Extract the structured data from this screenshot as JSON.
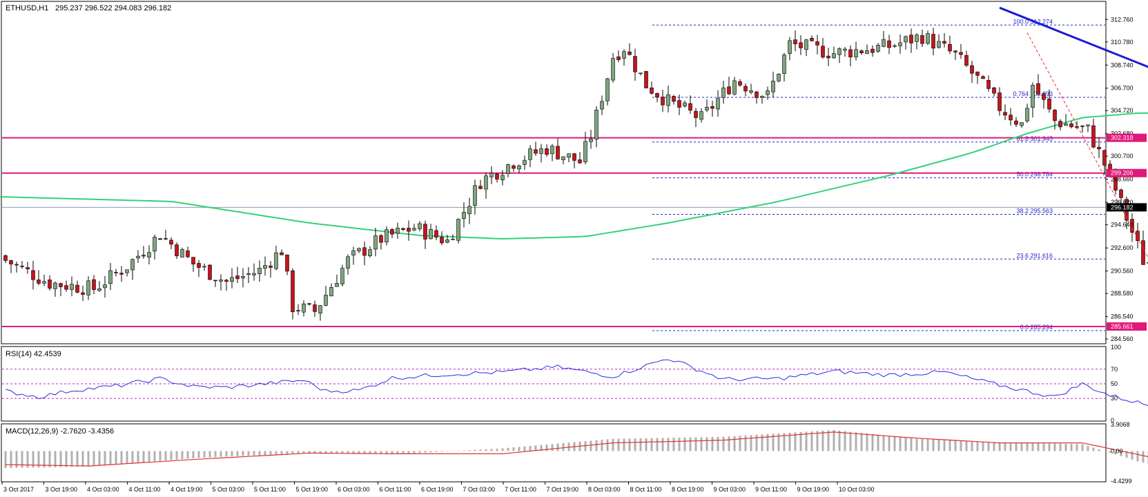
{
  "main": {
    "symbol_label": "ETHUSD,H1",
    "ohlc_label": "295.237 296.522 294.083 296.182",
    "y_ticks": [
      312.76,
      310.78,
      308.74,
      306.7,
      304.72,
      302.68,
      300.7,
      298.66,
      296.62,
      294.64,
      292.6,
      290.56,
      288.58,
      286.54,
      284.56
    ],
    "ylim": [
      284.2,
      314.3
    ],
    "levels": [
      {
        "price": 302.318,
        "label": "302.318",
        "color": "#e0197a"
      },
      {
        "price": 299.206,
        "label": "299.206",
        "color": "#e0197a"
      },
      {
        "price": 285.661,
        "label": "285.661",
        "color": "#e0197a"
      }
    ],
    "current_price": {
      "price": 296.182,
      "label": "296.182"
    },
    "fib_levels": [
      {
        "ratio": "100.0",
        "price": 312.274,
        "label": "100.0  312.274"
      },
      {
        "ratio": "0.764",
        "price": 305.893,
        "label": "0.764  305.893"
      },
      {
        "ratio": "61.8",
        "price": 301.945,
        "label": "61.8  301.945"
      },
      {
        "ratio": "50.0",
        "price": 298.784,
        "label": "50.0  298.784"
      },
      {
        "ratio": "38.2",
        "price": 295.563,
        "label": "38.2  295.563"
      },
      {
        "ratio": "23.6",
        "price": 291.616,
        "label": "23.6  291.616"
      },
      {
        "ratio": "0.0",
        "price": 285.294,
        "label": "0.0  285.294"
      }
    ]
  },
  "rsi": {
    "label": "RSI(14) 42.4539",
    "y_ticks": [
      100,
      70,
      50,
      30,
      0
    ],
    "levels": [
      70,
      50,
      30
    ]
  },
  "macd": {
    "label": "MACD(12,26,9) -2.7620 -3.4356",
    "y_ticks": [
      "3.9068",
      "0.00",
      "-4.4299"
    ],
    "ylim": [
      -4.4299,
      3.9068
    ]
  },
  "x_axis": {
    "labels": [
      "3 Oct 2017",
      "3 Oct 19:00",
      "4 Oct 03:00",
      "4 Oct 11:00",
      "4 Oct 19:00",
      "5 Oct 03:00",
      "5 Oct 11:00",
      "5 Oct 19:00",
      "6 Oct 03:00",
      "6 Oct 11:00",
      "6 Oct 19:00",
      "7 Oct 03:00",
      "7 Oct 11:00",
      "7 Oct 19:00",
      "8 Oct 03:00",
      "8 Oct 11:00",
      "8 Oct 19:00",
      "9 Oct 03:00",
      "9 Oct 11:00",
      "9 Oct 19:00",
      "10 Oct 03:00"
    ]
  },
  "colors": {
    "bull": "#7fa67f",
    "bear": "#c4161c",
    "ma": "#33d17a",
    "trendline": "#1a1ad6",
    "fib": "#2222cc",
    "rsi": "#2a2ae0",
    "macd_signal": "#e03030",
    "macd_hist": "#b0b0b0"
  },
  "chart_data": {
    "type": "candlestick",
    "symbol": "ETHUSD",
    "timeframe": "H1",
    "anchors_close": [
      [
        0,
        291.5
      ],
      [
        8,
        289.5
      ],
      [
        16,
        289.0
      ],
      [
        22,
        291.0
      ],
      [
        28,
        293.8
      ],
      [
        34,
        291.2
      ],
      [
        40,
        289.6
      ],
      [
        46,
        290.6
      ],
      [
        50,
        292.4
      ],
      [
        52,
        287.4
      ],
      [
        56,
        287.0
      ],
      [
        62,
        291.5
      ],
      [
        68,
        293.4
      ],
      [
        74,
        294.4
      ],
      [
        80,
        293.2
      ],
      [
        86,
        298.5
      ],
      [
        92,
        300.2
      ],
      [
        98,
        301.4
      ],
      [
        104,
        300.2
      ],
      [
        106,
        302.5
      ],
      [
        110,
        309.5
      ],
      [
        112,
        310.3
      ],
      [
        116,
        307.0
      ],
      [
        120,
        305.5
      ],
      [
        126,
        304.0
      ],
      [
        132,
        307.4
      ],
      [
        138,
        306.0
      ],
      [
        142,
        310.6
      ],
      [
        150,
        309.8
      ],
      [
        160,
        310.4
      ],
      [
        166,
        311.3
      ],
      [
        172,
        309.6
      ],
      [
        176,
        307.5
      ],
      [
        180,
        305.0
      ],
      [
        184,
        303.5
      ],
      [
        186,
        307.0
      ],
      [
        190,
        303.8
      ],
      [
        196,
        303.0
      ],
      [
        200,
        299.0
      ],
      [
        206,
        291.5
      ],
      [
        210,
        291.0
      ],
      [
        214,
        296.0
      ],
      [
        220,
        294.5
      ],
      [
        224,
        296.182
      ]
    ],
    "ma_points": [
      [
        0,
        297.1
      ],
      [
        30,
        296.7
      ],
      [
        55,
        294.8
      ],
      [
        75,
        293.7
      ],
      [
        90,
        293.4
      ],
      [
        105,
        293.6
      ],
      [
        120,
        294.8
      ],
      [
        140,
        296.7
      ],
      [
        160,
        299.0
      ],
      [
        175,
        301.0
      ],
      [
        185,
        302.7
      ],
      [
        195,
        304.1
      ],
      [
        205,
        304.5
      ],
      [
        220,
        304.5
      ]
    ],
    "rsi_points": [
      [
        0,
        40
      ],
      [
        6,
        32
      ],
      [
        12,
        41
      ],
      [
        20,
        47
      ],
      [
        28,
        57
      ],
      [
        34,
        46
      ],
      [
        40,
        45
      ],
      [
        54,
        55
      ],
      [
        58,
        40
      ],
      [
        64,
        41
      ],
      [
        70,
        58
      ],
      [
        80,
        63
      ],
      [
        90,
        66
      ],
      [
        100,
        73
      ],
      [
        110,
        60
      ],
      [
        120,
        85
      ],
      [
        130,
        56
      ],
      [
        140,
        57
      ],
      [
        150,
        67
      ],
      [
        160,
        62
      ],
      [
        170,
        66
      ],
      [
        180,
        48
      ],
      [
        190,
        32
      ],
      [
        195,
        50
      ],
      [
        200,
        34
      ],
      [
        210,
        15
      ],
      [
        214,
        40
      ],
      [
        218,
        37
      ],
      [
        224,
        43
      ]
    ],
    "macd_signal_points": [
      [
        0,
        -2.0
      ],
      [
        15,
        -2.2
      ],
      [
        35,
        -1.2
      ],
      [
        55,
        -0.3
      ],
      [
        70,
        -0.4
      ],
      [
        90,
        -0.4
      ],
      [
        110,
        1.2
      ],
      [
        130,
        1.6
      ],
      [
        150,
        2.8
      ],
      [
        165,
        1.9
      ],
      [
        180,
        1.2
      ],
      [
        195,
        1.2
      ],
      [
        205,
        -0.5
      ],
      [
        215,
        -2.3
      ],
      [
        225,
        -3.4
      ]
    ],
    "macd_hist_points": [
      [
        0,
        -2.5
      ],
      [
        15,
        -2.3
      ],
      [
        35,
        -1.0
      ],
      [
        55,
        -0.3
      ],
      [
        70,
        -0.5
      ],
      [
        90,
        0.4
      ],
      [
        110,
        1.8
      ],
      [
        130,
        2.1
      ],
      [
        150,
        3.1
      ],
      [
        165,
        1.8
      ],
      [
        180,
        1.3
      ],
      [
        195,
        1.0
      ],
      [
        205,
        -1.5
      ],
      [
        215,
        -3.5
      ],
      [
        225,
        -2.7
      ]
    ],
    "trendline": [
      [
        180,
        313.8
      ],
      [
        248,
        300.6
      ]
    ],
    "fib_diagonal": [
      [
        185,
        311.6
      ],
      [
        214,
        285.3
      ]
    ],
    "projection": [
      [
        228,
        297.2
      ],
      [
        232,
        301.2
      ],
      [
        236,
        300.4
      ],
      [
        240,
        292.6
      ]
    ]
  }
}
